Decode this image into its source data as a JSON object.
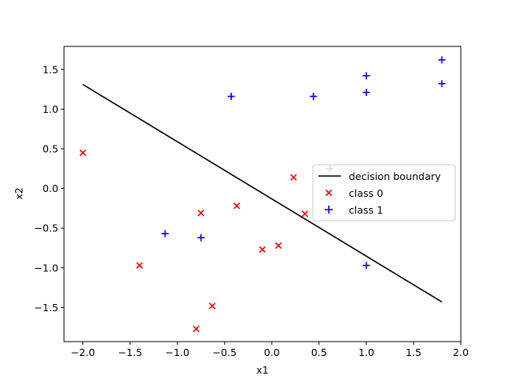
{
  "chart_data": {
    "type": "scatter",
    "title": "",
    "xlabel": "x1",
    "ylabel": "x2",
    "xlim": [
      -2.2,
      2.0
    ],
    "ylim": [
      -1.93,
      1.79
    ],
    "xticks": [
      -2.0,
      -1.5,
      -1.0,
      -0.5,
      0.0,
      0.5,
      1.0,
      1.5,
      2.0
    ],
    "xtick_labels": [
      "−2.0",
      "−1.5",
      "−1.0",
      "−0.5",
      "0.0",
      "0.5",
      "1.0",
      "1.5",
      "2.0"
    ],
    "yticks": [
      -1.5,
      -1.0,
      -0.5,
      0.0,
      0.5,
      1.0,
      1.5
    ],
    "ytick_labels": [
      "−1.5",
      "−1.0",
      "−0.5",
      "0.0",
      "0.5",
      "1.0",
      "1.5"
    ],
    "grid": false,
    "legend_position": "center-right",
    "series": [
      {
        "name": "decision boundary",
        "kind": "line",
        "color": "#000000",
        "x": [
          -2.0,
          1.8
        ],
        "y": [
          1.31,
          -1.43
        ]
      },
      {
        "name": "class 0",
        "kind": "scatter",
        "marker": "x",
        "color": "#ff0000",
        "x": [
          -2.0,
          -1.4,
          -0.75,
          -0.8,
          -0.63,
          -0.37,
          -0.1,
          0.07,
          0.23,
          0.35
        ],
        "y": [
          0.45,
          -0.97,
          -0.31,
          -1.77,
          -1.48,
          -0.22,
          -0.77,
          -0.72,
          0.14,
          -0.32
        ]
      },
      {
        "name": "class 1",
        "kind": "scatter",
        "marker": "+",
        "color": "#0000ff",
        "x": [
          -1.13,
          -0.75,
          -0.43,
          0.44,
          0.61,
          1.0,
          1.0,
          1.0,
          1.8,
          1.8
        ],
        "y": [
          -0.57,
          -0.62,
          1.16,
          1.16,
          0.25,
          1.42,
          1.21,
          -0.97,
          1.62,
          1.32
        ]
      }
    ]
  }
}
